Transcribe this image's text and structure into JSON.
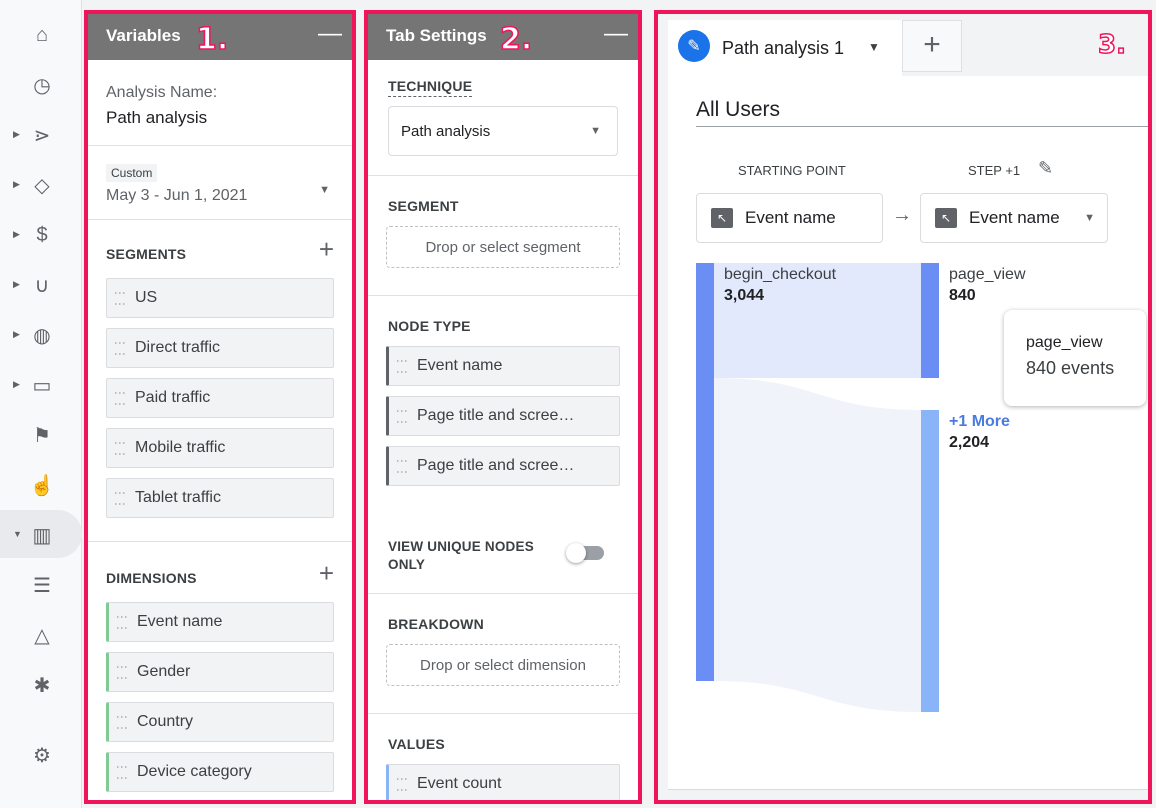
{
  "nav": {
    "items": [
      "home-icon",
      "clock-icon",
      "explore-icon",
      "tag-icon",
      "dollar-icon",
      "magnet-icon",
      "globe-icon",
      "devices-icon",
      "flag-icon",
      "touch-icon",
      "analysis-icon",
      "audience-icon",
      "shapes-icon",
      "bug-icon"
    ],
    "settings": "gear-icon"
  },
  "variables": {
    "title": "Variables",
    "badge": "1.",
    "name_label": "Analysis Name:",
    "name_value": "Path analysis",
    "date_tag": "Custom",
    "date_range": "May 3 - Jun 1, 2021",
    "segments_label": "SEGMENTS",
    "segments": [
      "US",
      "Direct traffic",
      "Paid traffic",
      "Mobile traffic",
      "Tablet traffic"
    ],
    "dimensions_label": "DIMENSIONS",
    "dimensions": [
      "Event name",
      "Gender",
      "Country",
      "Device category"
    ]
  },
  "tab_settings": {
    "title": "Tab Settings",
    "badge": "2.",
    "technique_label": "TECHNIQUE",
    "technique_value": "Path analysis",
    "segment_label": "SEGMENT",
    "segment_drop": "Drop or select segment",
    "node_type_label": "NODE TYPE",
    "node_types": [
      "Event name",
      "Page title and scree…",
      "Page title and scree…"
    ],
    "unique_label": "VIEW UNIQUE NODES ONLY",
    "unique_on": false,
    "breakdown_label": "BREAKDOWN",
    "breakdown_drop": "Drop or select dimension",
    "values_label": "VALUES",
    "values": [
      "Event count"
    ]
  },
  "canvas": {
    "badge": "3.",
    "tab_name": "Path analysis 1",
    "segment_title": "All Users",
    "starting_point_label": "STARTING POINT",
    "step_label": "STEP +1",
    "start_node": "Event name",
    "step_node": "Event name",
    "colors": {
      "node": "#6b8ef5",
      "node_light": "#8ab4f8",
      "flow": "#e3e9fc"
    },
    "nodes": {
      "start": {
        "name": "begin_checkout",
        "value": "3,044"
      },
      "step": [
        {
          "name": "page_view",
          "value": "840"
        },
        {
          "name": "+1 More",
          "value": "2,204"
        }
      ]
    },
    "tooltip": {
      "title": "page_view",
      "value": "840 events"
    }
  }
}
